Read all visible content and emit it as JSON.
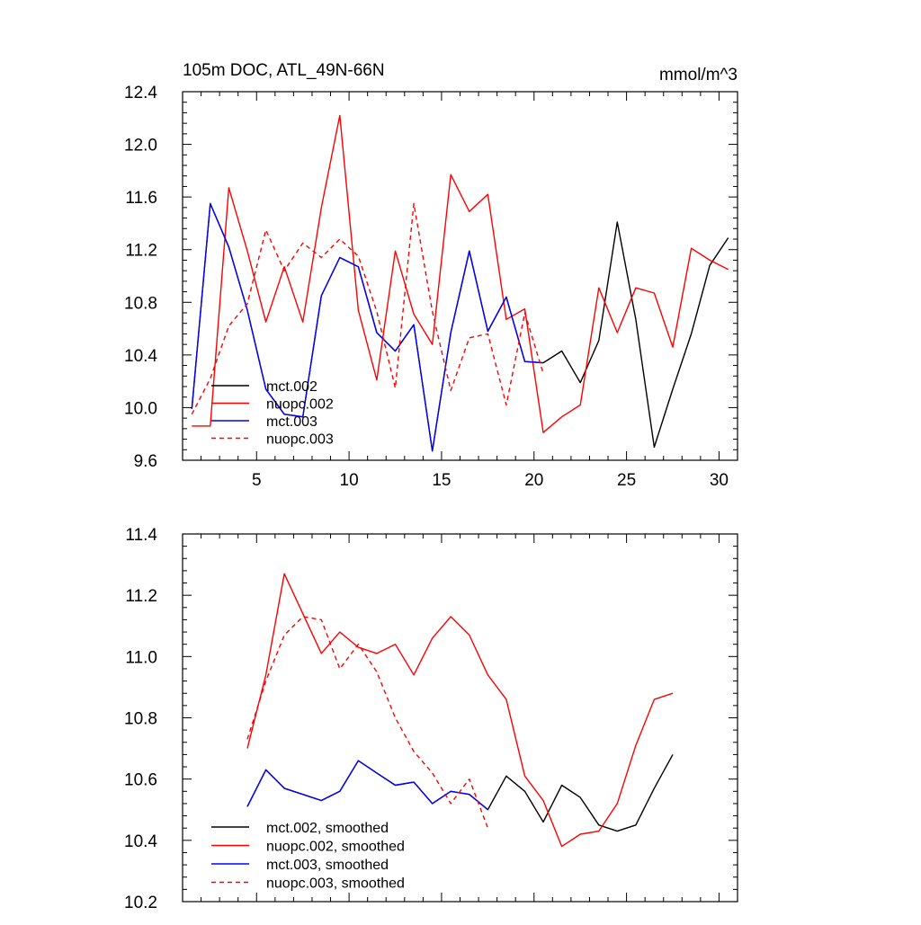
{
  "chart_data": [
    {
      "type": "line",
      "title": "105m DOC, ATL_49N-66N",
      "units": "mmol/m^3",
      "xlabel": "",
      "ylabel": "",
      "xlim": [
        1,
        31
      ],
      "ylim": [
        9.6,
        12.4
      ],
      "xticks": [
        5,
        10,
        15,
        20,
        25,
        30
      ],
      "yticks": [
        9.6,
        10.0,
        10.4,
        10.8,
        11.2,
        11.6,
        12.0,
        12.4
      ],
      "ytick_labels": [
        "9.6",
        "10.0",
        "10.4",
        "10.8",
        "11.2",
        "11.6",
        "12.0",
        "12.4"
      ],
      "show_xtick_labels": true,
      "legend_position": "bottom-left",
      "series": [
        {
          "name": "mct.002",
          "color": "#000000",
          "dash": "solid",
          "x": [
            1.5,
            2.5,
            3.5,
            4.5,
            5.5,
            6.5,
            7.5,
            8.5,
            9.5,
            10.5,
            11.5,
            12.5,
            13.5,
            14.5,
            15.5,
            16.5,
            17.5,
            18.5,
            19.5,
            20.5,
            21.5,
            22.5,
            23.5,
            24.5,
            25.5,
            26.5,
            27.5,
            28.5,
            29.5,
            30.5
          ],
          "y": [
            9.99,
            11.55,
            11.22,
            10.74,
            10.14,
            9.95,
            9.93,
            10.85,
            11.14,
            11.07,
            10.57,
            10.43,
            10.63,
            9.67,
            10.57,
            11.19,
            10.58,
            10.84,
            10.35,
            10.34,
            10.43,
            10.19,
            10.51,
            11.41,
            10.67,
            9.7,
            10.14,
            10.56,
            11.08,
            11.29
          ]
        },
        {
          "name": "nuopc.002",
          "color": "#ff0000",
          "dash": "solid",
          "x": [
            1.5,
            2.5,
            3.5,
            4.5,
            5.5,
            6.5,
            7.5,
            8.5,
            9.5,
            10.5,
            11.5,
            12.5,
            13.5,
            14.5,
            15.5,
            16.5,
            17.5,
            18.5,
            19.5,
            20.5,
            21.5,
            22.5,
            23.5,
            24.5,
            25.5,
            26.5,
            27.5,
            28.5,
            29.5,
            30.5
          ],
          "y": [
            9.86,
            9.86,
            11.67,
            11.19,
            10.65,
            11.07,
            10.65,
            11.52,
            12.22,
            10.74,
            10.21,
            11.19,
            10.71,
            10.48,
            11.77,
            11.49,
            11.62,
            10.67,
            10.75,
            9.81,
            9.93,
            10.02,
            10.91,
            10.57,
            10.91,
            10.87,
            10.46,
            11.21,
            11.12,
            11.05
          ]
        },
        {
          "name": "mct.003",
          "color": "#0000ff",
          "dash": "solid",
          "x": [
            1.5,
            2.5,
            3.5,
            4.5,
            5.5,
            6.5,
            7.5,
            8.5,
            9.5,
            10.5,
            11.5,
            12.5,
            13.5,
            14.5,
            15.5,
            16.5,
            17.5,
            18.5,
            19.5,
            20.5
          ],
          "y": [
            9.99,
            11.55,
            11.22,
            10.74,
            10.14,
            9.95,
            9.93,
            10.85,
            11.14,
            11.07,
            10.57,
            10.43,
            10.63,
            9.67,
            10.57,
            11.19,
            10.58,
            10.84,
            10.35,
            10.34
          ]
        },
        {
          "name": "nuopc.003",
          "color": "#ff0000",
          "dash": "dashed",
          "x": [
            1.5,
            2.5,
            3.5,
            4.5,
            5.5,
            6.5,
            7.5,
            8.5,
            9.5,
            10.5,
            11.5,
            12.5,
            13.5,
            14.5,
            15.5,
            16.5,
            17.5,
            18.5,
            19.5,
            20.5
          ],
          "y": [
            9.95,
            10.22,
            10.62,
            10.79,
            11.35,
            11.04,
            11.25,
            11.14,
            11.28,
            11.15,
            10.73,
            10.15,
            11.55,
            10.73,
            10.13,
            10.53,
            10.56,
            10.02,
            10.72,
            10.26
          ]
        }
      ]
    },
    {
      "type": "line",
      "title": "",
      "xlabel": "",
      "ylabel": "",
      "xlim": [
        1,
        31
      ],
      "ylim": [
        10.2,
        11.4
      ],
      "xticks": [
        5,
        10,
        15,
        20,
        25,
        30
      ],
      "yticks": [
        10.2,
        10.4,
        10.6,
        10.8,
        11.0,
        11.2,
        11.4
      ],
      "ytick_labels": [
        "10.2",
        "10.4",
        "10.6",
        "10.8",
        "11.0",
        "11.2",
        "11.4"
      ],
      "show_xtick_labels": false,
      "legend_position": "bottom-left",
      "series": [
        {
          "name": "mct.002, smoothed",
          "color": "#000000",
          "dash": "solid",
          "x": [
            4.5,
            5.5,
            6.5,
            7.5,
            8.5,
            9.5,
            10.5,
            11.5,
            12.5,
            13.5,
            14.5,
            15.5,
            16.5,
            17.5,
            18.5,
            19.5,
            20.5,
            21.5,
            22.5,
            23.5,
            24.5,
            25.5,
            26.5,
            27.5
          ],
          "y": [
            10.51,
            10.63,
            10.57,
            10.55,
            10.53,
            10.56,
            10.66,
            10.62,
            10.58,
            10.59,
            10.52,
            10.56,
            10.55,
            10.5,
            10.61,
            10.56,
            10.46,
            10.58,
            10.54,
            10.45,
            10.43,
            10.45,
            10.57,
            10.68
          ]
        },
        {
          "name": "nuopc.002, smoothed",
          "color": "#ff0000",
          "dash": "solid",
          "x": [
            4.5,
            5.5,
            6.5,
            7.5,
            8.5,
            9.5,
            10.5,
            11.5,
            12.5,
            13.5,
            14.5,
            15.5,
            16.5,
            17.5,
            18.5,
            19.5,
            20.5,
            21.5,
            22.5,
            23.5,
            24.5,
            25.5,
            26.5,
            27.5
          ],
          "y": [
            10.7,
            10.94,
            11.27,
            11.14,
            11.01,
            11.08,
            11.03,
            11.01,
            11.04,
            10.94,
            11.06,
            11.13,
            11.07,
            10.94,
            10.86,
            10.61,
            10.53,
            10.38,
            10.42,
            10.43,
            10.52,
            10.71,
            10.86,
            10.88
          ]
        },
        {
          "name": "mct.003, smoothed",
          "color": "#0000ff",
          "dash": "solid",
          "x": [
            4.5,
            5.5,
            6.5,
            7.5,
            8.5,
            9.5,
            10.5,
            11.5,
            12.5,
            13.5,
            14.5,
            15.5,
            16.5,
            17.5
          ],
          "y": [
            10.51,
            10.63,
            10.57,
            10.55,
            10.53,
            10.56,
            10.66,
            10.62,
            10.58,
            10.59,
            10.52,
            10.56,
            10.55,
            10.5
          ]
        },
        {
          "name": "nuopc.003, smoothed",
          "color": "#ff0000",
          "dash": "dashed",
          "x": [
            4.5,
            5.5,
            6.5,
            7.5,
            8.5,
            9.5,
            10.5,
            11.5,
            12.5,
            13.5,
            14.5,
            15.5,
            16.5,
            17.5
          ],
          "y": [
            10.73,
            10.92,
            11.07,
            11.13,
            11.12,
            10.96,
            11.04,
            10.95,
            10.8,
            10.69,
            10.62,
            10.52,
            10.6,
            10.44
          ]
        }
      ]
    }
  ]
}
